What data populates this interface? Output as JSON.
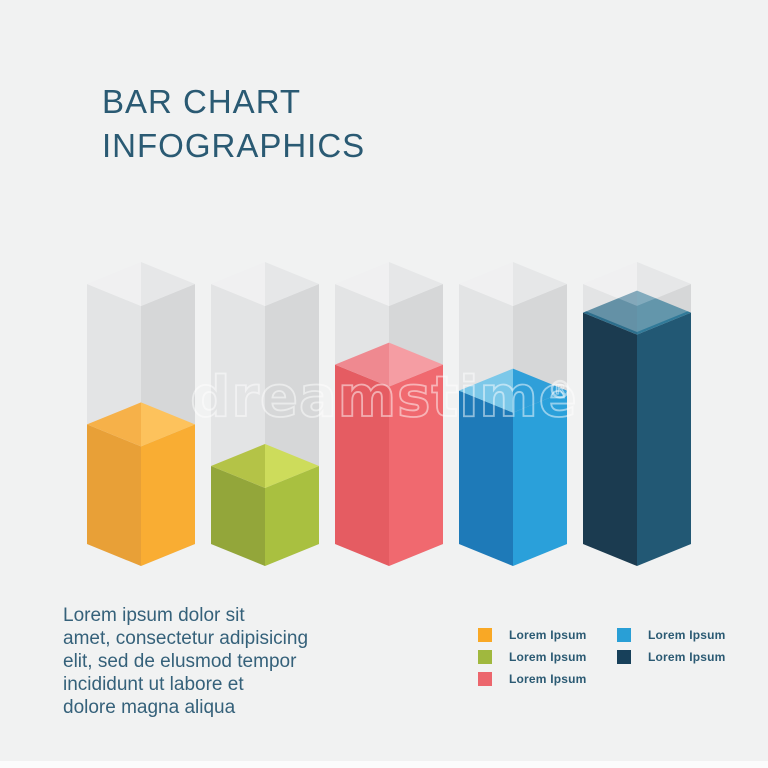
{
  "page": {
    "background_color": "#f1f2f2"
  },
  "title": {
    "line1": "BAR CHART",
    "line2": "INFOGRAPHICS",
    "color": "#2a5a73"
  },
  "paragraph": {
    "lines": [
      "Lorem ipsum dolor sit",
      "amet, consectetur adipisicing",
      "elit, sed de elusmod tempor",
      "incididunt ut labore et",
      "dolore magna aliqua"
    ]
  },
  "legend": {
    "columns": [
      {
        "items": [
          {
            "label": "Lorem Ipsum",
            "color": "#f9a825"
          },
          {
            "label": "Lorem Ipsum",
            "color": "#a0b83e"
          },
          {
            "label": "Lorem Ipsum",
            "color": "#ec666d"
          }
        ]
      },
      {
        "items": [
          {
            "label": "Lorem Ipsum",
            "color": "#299fd6"
          },
          {
            "label": "Lorem Ipsum",
            "color": "#17405a"
          }
        ]
      }
    ]
  },
  "watermark": {
    "text": "dreamstime",
    "mark": "®"
  },
  "chart_data": {
    "type": "bar",
    "style": "isometric-3d-cuboids-in-gray-containers",
    "title": "BAR CHART INFOGRAPHICS",
    "categories": [
      "Lorem Ipsum",
      "Lorem Ipsum",
      "Lorem Ipsum",
      "Lorem Ipsum",
      "Lorem Ipsum"
    ],
    "values": [
      46,
      30,
      69,
      59,
      89
    ],
    "ylim": [
      0,
      100
    ],
    "legend_position": "bottom-right",
    "container_colors": {
      "left": "#e3e4e5",
      "right": "#d6d7d8",
      "topLeft": "#f0f0f1",
      "topRight": "#e6e7e8"
    },
    "bars": [
      {
        "name": "orange-bar",
        "value": 46,
        "glass_overlap": false,
        "colors": {
          "left": "#e8a037",
          "right": "#f9ad33",
          "topLeft": "#f6b149",
          "topRight": "#fdc25c"
        }
      },
      {
        "name": "green-bar",
        "value": 30,
        "glass_overlap": false,
        "colors": {
          "left": "#93a63a",
          "right": "#a9c040",
          "topLeft": "#b4c347",
          "topRight": "#cddc5b"
        }
      },
      {
        "name": "red-bar",
        "value": 69,
        "glass_overlap": false,
        "colors": {
          "left": "#e55c62",
          "right": "#f0696f",
          "topLeft": "#ef8990",
          "topRight": "#f59da3"
        }
      },
      {
        "name": "blue-bar",
        "value": 59,
        "glass_overlap": false,
        "colors": {
          "left": "#1e7ab8",
          "right": "#2aa0da",
          "topLeft": "#7cc8e9",
          "topRight": "#2f9fd9"
        }
      },
      {
        "name": "navy-bar",
        "value": 89,
        "glass_overlap": true,
        "colors": {
          "left": "#1b3b50",
          "right": "#225874",
          "topLeft": "#2d6e8c",
          "topRight": "#317a99"
        }
      }
    ]
  }
}
